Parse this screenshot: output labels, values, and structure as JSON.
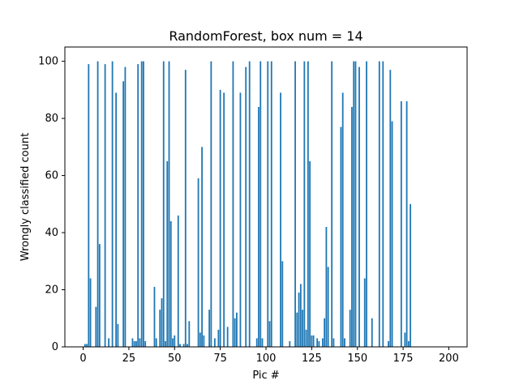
{
  "chart_data": {
    "type": "bar",
    "title": "RandomForest, box num = 14",
    "xlabel": "Pic #",
    "ylabel": "Wrongly classified count",
    "xlim": [
      -10,
      210
    ],
    "ylim": [
      0,
      105
    ],
    "xticks": [
      0,
      25,
      50,
      75,
      100,
      125,
      150,
      175,
      200
    ],
    "yticks": [
      0,
      20,
      40,
      60,
      80,
      100
    ],
    "grid": false,
    "bar_color": "#1f77b4",
    "x": [
      0,
      1,
      2,
      3,
      4,
      5,
      6,
      7,
      8,
      9,
      10,
      11,
      12,
      13,
      14,
      15,
      16,
      17,
      18,
      19,
      20,
      21,
      22,
      23,
      24,
      25,
      26,
      27,
      28,
      29,
      30,
      31,
      32,
      33,
      34,
      35,
      36,
      37,
      38,
      39,
      40,
      41,
      42,
      43,
      44,
      45,
      46,
      47,
      48,
      49,
      50,
      51,
      52,
      53,
      54,
      55,
      56,
      57,
      58,
      59,
      60,
      61,
      62,
      63,
      64,
      65,
      66,
      67,
      68,
      69,
      70,
      71,
      72,
      73,
      74,
      75,
      76,
      77,
      78,
      79,
      80,
      81,
      82,
      83,
      84,
      85,
      86,
      87,
      88,
      89,
      90,
      91,
      92,
      93,
      94,
      95,
      96,
      97,
      98,
      99,
      100,
      101,
      102,
      103,
      104,
      105,
      106,
      107,
      108,
      109,
      110,
      111,
      112,
      113,
      114,
      115,
      116,
      117,
      118,
      119,
      120,
      121,
      122,
      123,
      124,
      125,
      126,
      127,
      128,
      129,
      130,
      131,
      132,
      133,
      134,
      135,
      136,
      137,
      138,
      139,
      140,
      141,
      142,
      143,
      144,
      145,
      146,
      147,
      148,
      149,
      150,
      151,
      152,
      153,
      154,
      155,
      156,
      157,
      158,
      159,
      160,
      161,
      162,
      163,
      164,
      165,
      166,
      167,
      168,
      169,
      170,
      171,
      172,
      173,
      174,
      175,
      176,
      177,
      178,
      179,
      180,
      181,
      182,
      183,
      184,
      185,
      186,
      187,
      188,
      189,
      190,
      191,
      192,
      193,
      194,
      195,
      196,
      197,
      198,
      199
    ],
    "values": [
      0,
      1,
      1,
      99,
      24,
      0,
      0,
      14,
      100,
      36,
      0,
      0,
      99,
      0,
      3,
      0,
      100,
      0,
      89,
      8,
      0,
      0,
      93,
      98,
      0,
      0,
      0,
      3,
      2,
      2,
      99,
      3,
      100,
      100,
      2,
      0,
      0,
      0,
      0,
      21,
      3,
      0,
      13,
      17,
      100,
      2,
      65,
      100,
      44,
      3,
      4,
      0,
      46,
      1,
      0,
      1,
      97,
      1,
      9,
      0,
      0,
      0,
      0,
      59,
      5,
      70,
      4,
      0,
      0,
      13,
      100,
      0,
      3,
      0,
      6,
      90,
      0,
      89,
      0,
      7,
      0,
      0,
      100,
      10,
      12,
      0,
      89,
      0,
      0,
      98,
      0,
      100,
      0,
      0,
      0,
      3,
      84,
      100,
      3,
      0,
      0,
      100,
      9,
      100,
      0,
      0,
      0,
      0,
      89,
      30,
      0,
      0,
      0,
      2,
      0,
      0,
      100,
      12,
      19,
      22,
      13,
      100,
      6,
      100,
      65,
      4,
      4,
      0,
      3,
      2,
      0,
      3,
      10,
      42,
      28,
      0,
      100,
      3,
      0,
      0,
      0,
      77,
      89,
      3,
      0,
      0,
      13,
      84,
      100,
      100,
      0,
      98,
      0,
      0,
      24,
      100,
      0,
      0,
      10,
      0,
      0,
      0,
      100,
      0,
      100,
      0,
      0,
      2,
      97,
      79,
      0,
      0,
      0,
      0,
      86,
      0,
      5,
      86,
      2,
      50,
      0,
      0,
      0,
      0,
      0,
      0,
      0,
      0,
      0,
      0,
      0,
      0,
      0,
      0,
      0,
      0,
      0,
      0,
      0,
      0
    ]
  }
}
